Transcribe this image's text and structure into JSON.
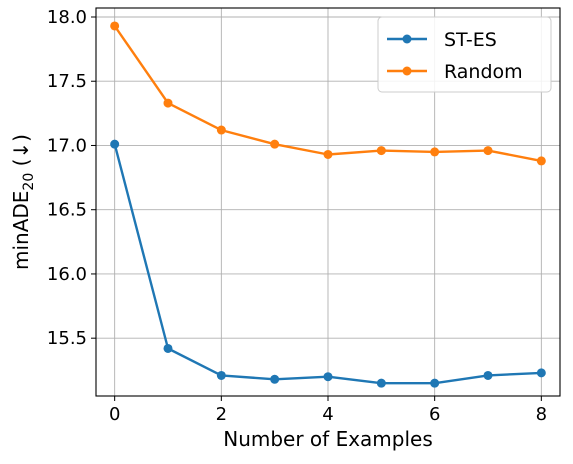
{
  "chart_data": {
    "type": "line",
    "title": "",
    "xlabel": "Number of Examples",
    "ylabel_main": "minADE",
    "ylabel_sub": "20",
    "ylabel_suffix": " (↓)",
    "x": [
      0,
      1,
      2,
      3,
      4,
      5,
      6,
      7,
      8
    ],
    "xlim": [
      -0.35,
      8.35
    ],
    "ylim": [
      15.05,
      18.07
    ],
    "xticks": [
      0,
      2,
      4,
      6,
      8
    ],
    "yticks": [
      15.5,
      16.0,
      16.5,
      17.0,
      17.5,
      18.0
    ],
    "xtick_labels": [
      "0",
      "2",
      "4",
      "6",
      "8"
    ],
    "ytick_labels": [
      "15.5",
      "16.0",
      "16.5",
      "17.0",
      "17.5",
      "18.0"
    ],
    "grid": true,
    "legend_position": "top-right",
    "series": [
      {
        "name": "ST-ES",
        "color": "#1f77b4",
        "values": [
          17.01,
          15.42,
          15.21,
          15.18,
          15.2,
          15.15,
          15.15,
          15.21,
          15.23
        ]
      },
      {
        "name": "Random",
        "color": "#ff7f0e",
        "values": [
          17.93,
          17.33,
          17.12,
          17.01,
          16.93,
          16.96,
          16.95,
          16.96,
          16.88
        ]
      }
    ]
  }
}
